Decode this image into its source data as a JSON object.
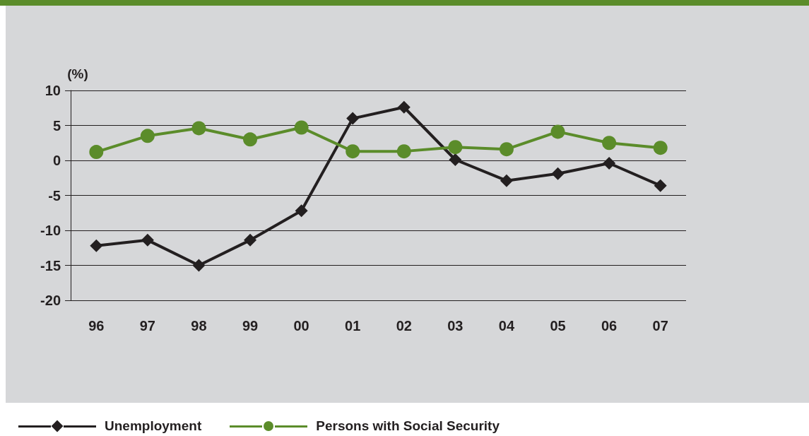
{
  "chart_data": {
    "type": "line",
    "ylabel": "(%)",
    "categories": [
      "96",
      "97",
      "98",
      "99",
      "00",
      "01",
      "02",
      "03",
      "04",
      "05",
      "06",
      "07"
    ],
    "series": [
      {
        "name": "Unemployment",
        "color": "#231f20",
        "marker": "diamond",
        "values": [
          -12.2,
          -11.4,
          -15.0,
          -11.4,
          -7.2,
          6.0,
          7.6,
          0.1,
          -2.9,
          -1.9,
          -0.4,
          -3.6
        ]
      },
      {
        "name": "Persons with Social Security",
        "color": "#5b8c2a",
        "marker": "circle",
        "values": [
          1.2,
          3.5,
          4.6,
          3.0,
          4.7,
          1.3,
          1.3,
          1.9,
          1.6,
          4.1,
          2.5,
          1.8
        ]
      }
    ],
    "ylim": [
      -20,
      10
    ],
    "yticks": [
      -20,
      -15,
      -10,
      -5,
      0,
      5,
      10
    ],
    "grid": "y",
    "legend": "bottom left",
    "line_style": "solid"
  }
}
